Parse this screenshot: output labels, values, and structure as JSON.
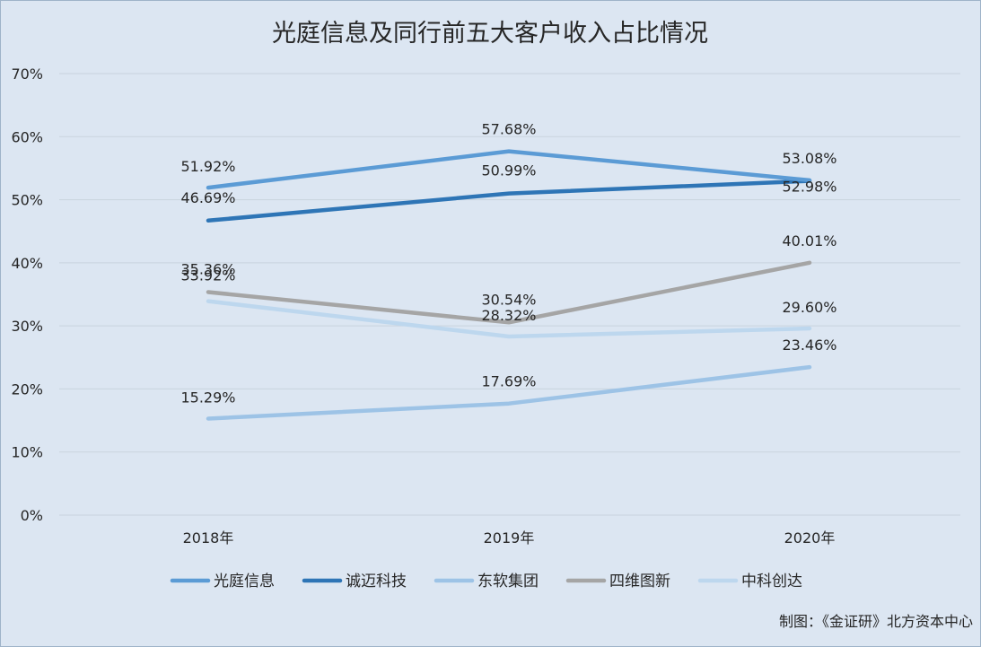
{
  "chart_data": {
    "type": "line",
    "title": "光庭信息及同行前五大客户收入占比情况",
    "categories": [
      "2018年",
      "2019年",
      "2020年"
    ],
    "yticks": [
      "0%",
      "10%",
      "20%",
      "30%",
      "40%",
      "50%",
      "60%",
      "70%"
    ],
    "ylim": [
      0,
      70
    ],
    "grid": true,
    "legend_position": "bottom",
    "series": [
      {
        "name": "光庭信息",
        "values": [
          51.92,
          57.68,
          53.08
        ],
        "labels": [
          "51.92%",
          "57.68%",
          "53.08%"
        ],
        "color": "#5b9bd5"
      },
      {
        "name": "诚迈科技",
        "values": [
          46.69,
          50.99,
          52.98
        ],
        "labels": [
          "46.69%",
          "50.99%",
          "52.98%"
        ],
        "color": "#2e75b6"
      },
      {
        "name": "东软集团",
        "values": [
          15.29,
          17.69,
          23.46
        ],
        "labels": [
          "15.29%",
          "17.69%",
          "23.46%"
        ],
        "color": "#9dc3e6"
      },
      {
        "name": "四维图新",
        "values": [
          35.36,
          30.54,
          40.01
        ],
        "labels": [
          "35.36%",
          "30.54%",
          "40.01%"
        ],
        "color": "#a5a5a5"
      },
      {
        "name": "中科创达",
        "values": [
          33.92,
          28.32,
          29.6
        ],
        "labels": [
          "33.92%",
          "28.32%",
          "29.60%"
        ],
        "color": "#bdd7ee"
      }
    ]
  },
  "source": "制图：《金证研》北方资本中心"
}
